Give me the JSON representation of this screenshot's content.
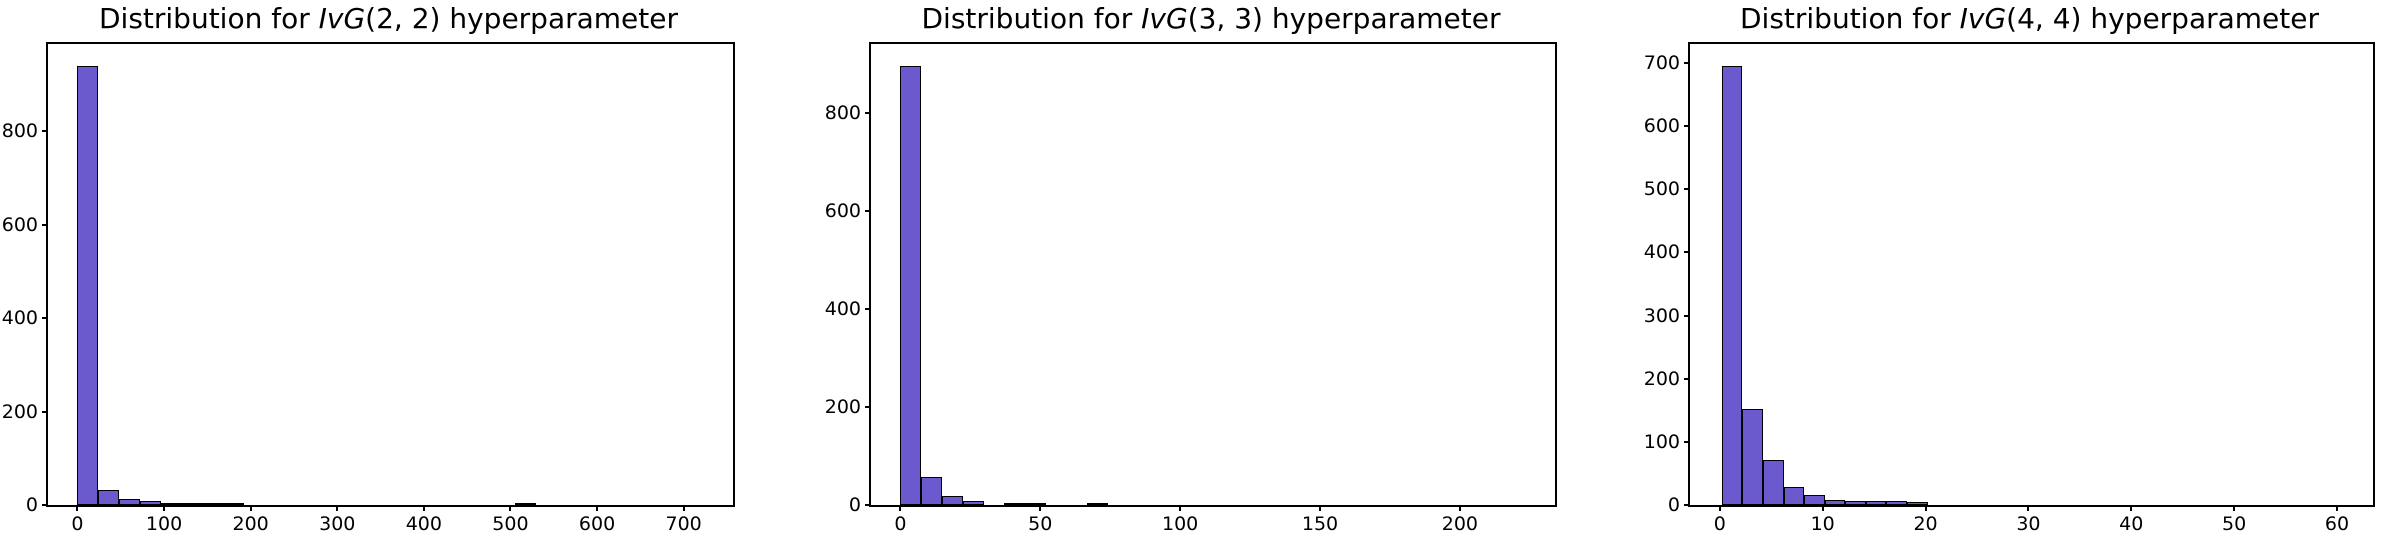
{
  "page": {
    "background": "#ffffff"
  },
  "colors": {
    "bar_fill": "#6A5ACD",
    "bar_edge": "#000000",
    "axis": "#000000",
    "text": "#000000"
  },
  "chart_data": [
    {
      "type": "bar",
      "kind": "histogram",
      "title": "Distribution for IvG(2, 2) hyperparameter",
      "title_parts": {
        "prefix": "Distribution for ",
        "math": "IvG",
        "args": "(2, 2)",
        "suffix": " hyperparameter"
      },
      "xlabel": "",
      "ylabel": "",
      "grid": false,
      "legend_position": "none",
      "xlim": [
        -34,
        757
      ],
      "ylim": [
        0,
        987
      ],
      "xticks": [
        0,
        100,
        200,
        300,
        400,
        500,
        600,
        700
      ],
      "yticks": [
        0,
        200,
        400,
        600,
        800
      ],
      "bins": {
        "start": 0,
        "width": 24.05
      },
      "counts": [
        940,
        33,
        12,
        9,
        3,
        3,
        5,
        2,
        0,
        0,
        0,
        0,
        0,
        0,
        0,
        0,
        0,
        0,
        0,
        0,
        0,
        3,
        0,
        0,
        0,
        0,
        0,
        0,
        0,
        0
      ]
    },
    {
      "type": "bar",
      "kind": "histogram",
      "title": "Distribution for IvG(3, 3) hyperparameter",
      "title_parts": {
        "prefix": "Distribution for ",
        "math": "IvG",
        "args": "(3, 3)",
        "suffix": " hyperparameter"
      },
      "xlabel": "",
      "ylabel": "",
      "grid": false,
      "legend_position": "none",
      "xlim": [
        -10.5,
        234
      ],
      "ylim": [
        0,
        940
      ],
      "xticks": [
        0,
        50,
        100,
        150,
        200
      ],
      "yticks": [
        0,
        200,
        400,
        600,
        800
      ],
      "bins": {
        "start": 0,
        "width": 7.43
      },
      "counts": [
        895,
        58,
        19,
        8,
        0,
        5,
        2,
        0,
        0,
        3,
        0,
        0,
        0,
        0,
        0,
        0,
        0,
        0,
        0,
        0,
        0,
        0,
        0,
        0,
        0,
        0,
        0,
        0,
        0,
        0
      ]
    },
    {
      "type": "bar",
      "kind": "histogram",
      "title": "Distribution for IvG(4, 4) hyperparameter",
      "title_parts": {
        "prefix": "Distribution for ",
        "math": "IvG",
        "args": "(4, 4)",
        "suffix": " hyperparameter"
      },
      "xlabel": "",
      "ylabel": "",
      "grid": false,
      "legend_position": "none",
      "xlim": [
        -2.9,
        63.5
      ],
      "ylim": [
        0,
        730
      ],
      "xticks": [
        0,
        10,
        20,
        30,
        40,
        50,
        60
      ],
      "yticks": [
        0,
        100,
        200,
        300,
        400,
        500,
        600,
        700
      ],
      "bins": {
        "start": 0.2,
        "width": 2.0
      },
      "counts": [
        695,
        152,
        72,
        29,
        16,
        8,
        6,
        6,
        6,
        5,
        0,
        0,
        0,
        0,
        0,
        0,
        0,
        0,
        0,
        0,
        0,
        0,
        0,
        0,
        0,
        0,
        0,
        0,
        0,
        0
      ]
    }
  ]
}
